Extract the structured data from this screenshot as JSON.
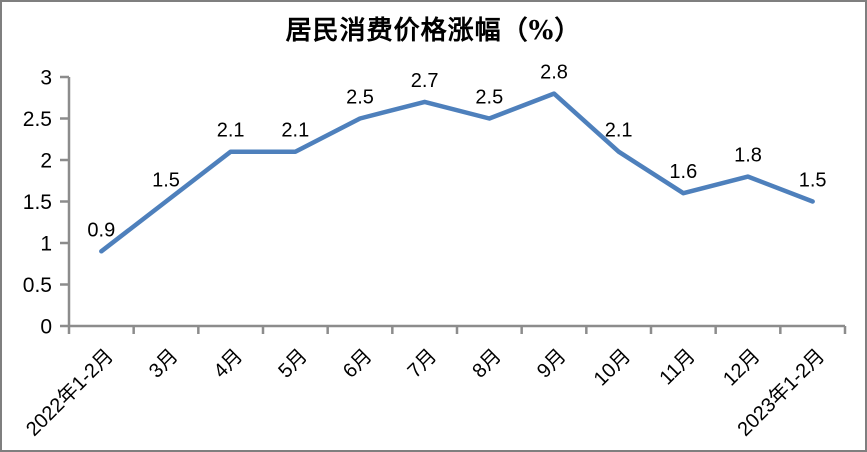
{
  "chart_data": {
    "type": "line",
    "title": "居民消费价格涨幅（%）",
    "categories": [
      "2022年1-2月",
      "3月",
      "4月",
      "5月",
      "6月",
      "7月",
      "8月",
      "9月",
      "10月",
      "11月",
      "12月",
      "2023年1-2月"
    ],
    "values": [
      0.9,
      1.5,
      2.1,
      2.1,
      2.5,
      2.7,
      2.5,
      2.8,
      2.1,
      1.6,
      1.8,
      1.5
    ],
    "data_labels": [
      "0.9",
      "1.5",
      "2.1",
      "2.1",
      "2.5",
      "2.7",
      "2.5",
      "2.8",
      "2.1",
      "1.6",
      "1.8",
      "1.5"
    ],
    "xlabel": "",
    "ylabel": "",
    "ylim": [
      0,
      3
    ],
    "ytick_step": 0.5,
    "ytick_labels": [
      "0",
      "0.5",
      "1",
      "1.5",
      "2",
      "2.5",
      "3"
    ],
    "grid": false,
    "legend": "none",
    "x_label_rotation_deg": 45,
    "colors": {
      "line": "#4E80BC",
      "axis": "#8C8C8C",
      "text": "#000000",
      "border": "#7F7F7F",
      "background": "#FFFFFF"
    }
  }
}
